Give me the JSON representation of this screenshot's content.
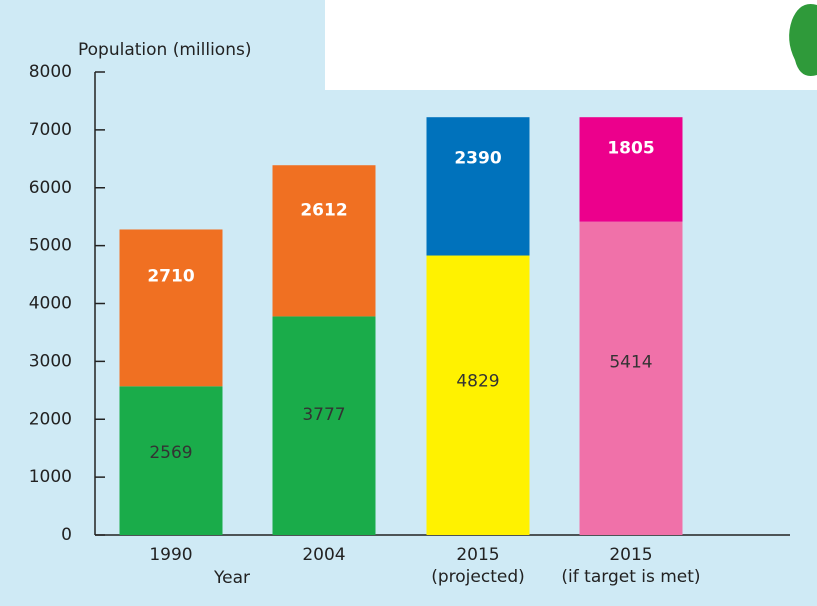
{
  "chart_data": {
    "type": "stacked-bar",
    "y_axis_label": "Population (millions)",
    "x_axis_label": "Year",
    "categories": [
      [
        "1990"
      ],
      [
        "2004"
      ],
      [
        "2015",
        "(projected)"
      ],
      [
        "2015",
        "(if target is met)"
      ]
    ],
    "series": [
      {
        "values": [
          2569,
          3777,
          4829,
          5414
        ],
        "colors": [
          "#1aac4a",
          "#1aac4a",
          "#fff200",
          "#f071a9"
        ]
      },
      {
        "values": [
          2710,
          2612,
          2390,
          1805
        ],
        "colors": [
          "#f07022",
          "#f07022",
          "#0072bc",
          "#ec008c"
        ]
      }
    ],
    "ylim": [
      0,
      8000
    ],
    "yticks": [
      0,
      1000,
      2000,
      3000,
      4000,
      5000,
      6000,
      7000,
      8000
    ]
  }
}
